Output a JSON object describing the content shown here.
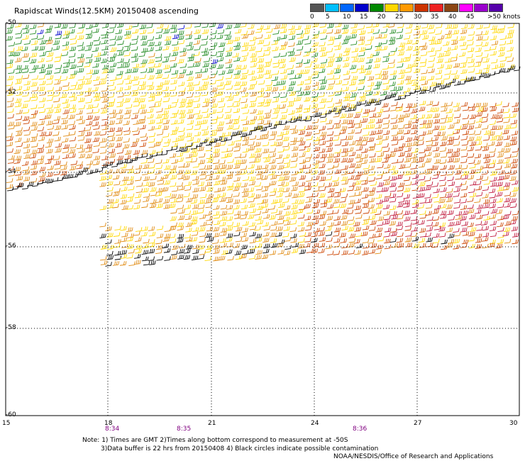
{
  "title": "Rapidscat Winds(12.5KM) 20150408 ascending",
  "legend": {
    "ticks": [
      "0",
      "5",
      "10",
      "15",
      "20",
      "25",
      "30",
      "35",
      "40",
      "45",
      ">50 knots"
    ],
    "colors": [
      "#555555",
      "#00bfff",
      "#0066ff",
      "#0000cc",
      "#008800",
      "#ffd700",
      "#ff9900",
      "#cc3300",
      "#ee2222",
      "#8b4513",
      "#ff00ff",
      "#9900cc",
      "#5500aa"
    ]
  },
  "map": {
    "lat_labels": [
      "-50",
      "-52",
      "-54",
      "-56",
      "-58",
      "-60"
    ],
    "lon_labels": [
      "15",
      "18",
      "21",
      "24",
      "27",
      "30"
    ],
    "time_labels": [
      "8:34",
      "8:35",
      "8:36"
    ],
    "wind_colors": {
      "green": "#228b22",
      "yellow": "#ffd700",
      "orange": "#e08a10",
      "red_orange": "#cc4400",
      "crimson": "#c0183c",
      "black": "#000000",
      "blue": "#0000cc"
    }
  },
  "notes": {
    "line1": "Note: 1) Times are GMT 2)Times along bottom correspond to measurement at -50S",
    "line2": "3)Data buffer is 22 hrs from 20150408 4) Black circles indicate possible contamination",
    "credit": "NOAA/NESDIS/Office of Research and Applications"
  }
}
